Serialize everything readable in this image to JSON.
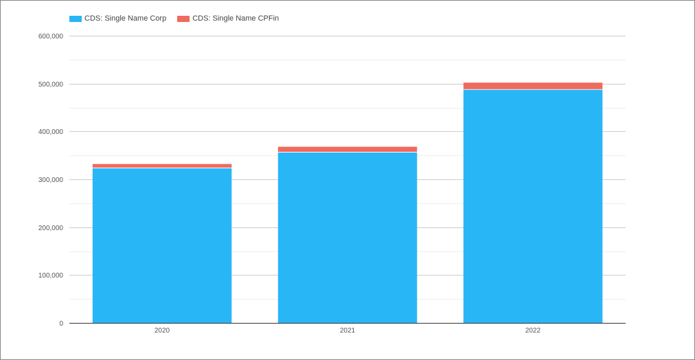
{
  "chart_data": {
    "type": "bar",
    "stacked": true,
    "categories": [
      "2020",
      "2021",
      "2022"
    ],
    "series": [
      {
        "name": "CDS: Single Name Corp",
        "color": "#29b6f6",
        "values": [
          323000,
          356000,
          487000
        ]
      },
      {
        "name": "CDS: Single Name CPFin",
        "color": "#ef6b5e",
        "values": [
          9000,
          12000,
          15000
        ]
      }
    ],
    "ylim": [
      0,
      600000
    ],
    "yticks": [
      0,
      100000,
      200000,
      300000,
      400000,
      500000,
      600000
    ],
    "ytick_labels": [
      "0",
      "100,000",
      "200,000",
      "300,000",
      "400,000",
      "500,000",
      "600,000"
    ],
    "grid": true,
    "legend": "top-left",
    "title": "",
    "xlabel": "",
    "ylabel": ""
  }
}
